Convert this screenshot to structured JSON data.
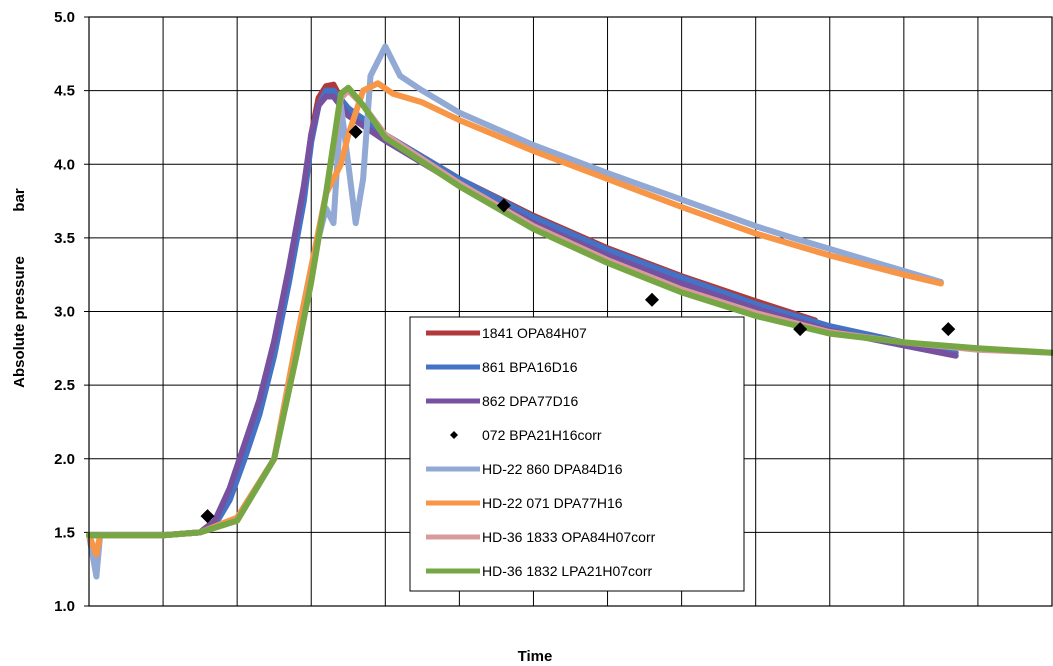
{
  "chart_data": {
    "type": "line",
    "title": "",
    "xlabel": "Time",
    "ylabel": "Absolute pressure",
    "ylabel_unit": "bar",
    "ylim": [
      1.0,
      5.0
    ],
    "yticks": [
      "1.0",
      "1.5",
      "2.0",
      "2.5",
      "3.0",
      "3.5",
      "4.0",
      "4.5",
      "5.0"
    ],
    "grid": true,
    "legend_position": "center-bottom",
    "x_tick_labels_shown": false,
    "series": [
      {
        "name": "1841 OPA84H07",
        "color": "#b0393b",
        "style": "line",
        "points": [
          [
            0,
            1.48
          ],
          [
            1,
            1.48
          ],
          [
            1.5,
            1.5
          ],
          [
            1.7,
            1.55
          ],
          [
            1.9,
            1.75
          ],
          [
            2.1,
            2.05
          ],
          [
            2.3,
            2.35
          ],
          [
            2.5,
            2.75
          ],
          [
            2.7,
            3.25
          ],
          [
            2.9,
            3.8
          ],
          [
            3.0,
            4.2
          ],
          [
            3.1,
            4.45
          ],
          [
            3.2,
            4.53
          ],
          [
            3.3,
            4.54
          ],
          [
            3.5,
            4.35
          ],
          [
            4,
            4.2
          ],
          [
            5,
            3.9
          ],
          [
            6,
            3.65
          ],
          [
            7,
            3.43
          ],
          [
            8,
            3.24
          ],
          [
            9,
            3.07
          ],
          [
            9.8,
            2.94
          ]
        ]
      },
      {
        "name": "861 BPA16D16",
        "color": "#4472c4",
        "style": "line",
        "points": [
          [
            0,
            1.48
          ],
          [
            1,
            1.48
          ],
          [
            1.5,
            1.5
          ],
          [
            1.7,
            1.55
          ],
          [
            1.9,
            1.72
          ],
          [
            2.1,
            2.0
          ],
          [
            2.3,
            2.3
          ],
          [
            2.5,
            2.7
          ],
          [
            2.7,
            3.2
          ],
          [
            2.9,
            3.75
          ],
          [
            3.0,
            4.15
          ],
          [
            3.1,
            4.4
          ],
          [
            3.2,
            4.5
          ],
          [
            3.3,
            4.5
          ],
          [
            3.5,
            4.38
          ],
          [
            4,
            4.2
          ],
          [
            5,
            3.9
          ],
          [
            6,
            3.64
          ],
          [
            7,
            3.42
          ],
          [
            8,
            3.23
          ],
          [
            9,
            3.05
          ],
          [
            10,
            2.9
          ],
          [
            11,
            2.79
          ],
          [
            11.7,
            2.72
          ]
        ]
      },
      {
        "name": "862 DPA77D16",
        "color": "#7551a0",
        "style": "line",
        "points": [
          [
            0,
            1.48
          ],
          [
            1,
            1.48
          ],
          [
            1.5,
            1.5
          ],
          [
            1.7,
            1.58
          ],
          [
            1.9,
            1.8
          ],
          [
            2.1,
            2.1
          ],
          [
            2.3,
            2.4
          ],
          [
            2.5,
            2.8
          ],
          [
            2.7,
            3.3
          ],
          [
            2.9,
            3.85
          ],
          [
            3.0,
            4.2
          ],
          [
            3.1,
            4.4
          ],
          [
            3.2,
            4.46
          ],
          [
            3.3,
            4.46
          ],
          [
            3.5,
            4.33
          ],
          [
            4,
            4.16
          ],
          [
            5,
            3.86
          ],
          [
            6,
            3.6
          ],
          [
            7,
            3.38
          ],
          [
            8,
            3.19
          ],
          [
            9,
            3.02
          ],
          [
            10,
            2.87
          ],
          [
            11,
            2.77
          ],
          [
            11.7,
            2.7
          ]
        ]
      },
      {
        "name": "072 BPA21H16corr",
        "color": "#000000",
        "style": "marker",
        "points": [
          [
            1.6,
            1.61
          ],
          [
            3.6,
            4.22
          ],
          [
            5.6,
            3.72
          ],
          [
            7.6,
            3.08
          ],
          [
            9.6,
            2.88
          ],
          [
            11.6,
            2.88
          ]
        ]
      },
      {
        "name": "HD-22 860 DPA84D16",
        "color": "#91a9d4",
        "style": "line",
        "points": [
          [
            0,
            1.48
          ],
          [
            0.1,
            1.2
          ],
          [
            0.15,
            1.48
          ],
          [
            1,
            1.48
          ],
          [
            1.5,
            1.5
          ],
          [
            2,
            1.6
          ],
          [
            2.5,
            2.0
          ],
          [
            2.8,
            2.8
          ],
          [
            3.0,
            3.3
          ],
          [
            3.2,
            3.7
          ],
          [
            3.3,
            3.6
          ],
          [
            3.4,
            4.4
          ],
          [
            3.5,
            4.0
          ],
          [
            3.6,
            3.6
          ],
          [
            3.7,
            3.9
          ],
          [
            3.8,
            4.6
          ],
          [
            4.0,
            4.8
          ],
          [
            4.2,
            4.6
          ],
          [
            4.5,
            4.5
          ],
          [
            5,
            4.35
          ],
          [
            6,
            4.13
          ],
          [
            7,
            3.94
          ],
          [
            8,
            3.76
          ],
          [
            9,
            3.58
          ],
          [
            9.5,
            3.5
          ],
          [
            11.5,
            3.2
          ]
        ]
      },
      {
        "name": "HD-22 071 DPA77H16",
        "color": "#f79646",
        "style": "line",
        "points": [
          [
            0,
            1.48
          ],
          [
            0.1,
            1.35
          ],
          [
            0.15,
            1.48
          ],
          [
            1,
            1.48
          ],
          [
            1.5,
            1.5
          ],
          [
            2,
            1.6
          ],
          [
            2.5,
            2.0
          ],
          [
            2.8,
            2.8
          ],
          [
            3.0,
            3.3
          ],
          [
            3.2,
            3.8
          ],
          [
            3.4,
            4.0
          ],
          [
            3.5,
            4.2
          ],
          [
            3.7,
            4.5
          ],
          [
            3.9,
            4.55
          ],
          [
            4.1,
            4.48
          ],
          [
            4.5,
            4.42
          ],
          [
            5,
            4.3
          ],
          [
            6,
            4.09
          ],
          [
            7,
            3.9
          ],
          [
            8,
            3.71
          ],
          [
            9,
            3.53
          ],
          [
            10,
            3.38
          ],
          [
            11,
            3.25
          ],
          [
            11.5,
            3.19
          ]
        ]
      },
      {
        "name": "HD-36 1833 OPA84H07corr",
        "color": "#d89a9a",
        "style": "line",
        "points": [
          [
            0,
            1.48
          ],
          [
            1,
            1.48
          ],
          [
            1.5,
            1.5
          ],
          [
            2,
            1.58
          ],
          [
            2.5,
            2.0
          ],
          [
            2.8,
            2.7
          ],
          [
            3.0,
            3.2
          ],
          [
            3.2,
            3.8
          ],
          [
            3.4,
            4.45
          ],
          [
            3.5,
            4.5
          ],
          [
            3.7,
            4.4
          ],
          [
            4,
            4.2
          ],
          [
            5,
            3.87
          ],
          [
            6,
            3.58
          ],
          [
            7,
            3.35
          ],
          [
            8,
            3.15
          ],
          [
            9,
            2.99
          ],
          [
            10,
            2.86
          ],
          [
            11,
            2.79
          ],
          [
            12,
            2.74
          ],
          [
            13,
            2.72
          ]
        ]
      },
      {
        "name": "HD-36 1832 LPA21H07corr",
        "color": "#77a645",
        "style": "line",
        "points": [
          [
            0,
            1.48
          ],
          [
            1,
            1.48
          ],
          [
            1.5,
            1.5
          ],
          [
            2,
            1.58
          ],
          [
            2.5,
            2.0
          ],
          [
            2.8,
            2.7
          ],
          [
            3.0,
            3.2
          ],
          [
            3.2,
            3.8
          ],
          [
            3.4,
            4.48
          ],
          [
            3.5,
            4.52
          ],
          [
            3.7,
            4.4
          ],
          [
            4,
            4.18
          ],
          [
            5,
            3.85
          ],
          [
            6,
            3.56
          ],
          [
            7,
            3.33
          ],
          [
            8,
            3.13
          ],
          [
            9,
            2.97
          ],
          [
            10,
            2.85
          ],
          [
            11,
            2.79
          ],
          [
            12,
            2.75
          ],
          [
            13,
            2.72
          ]
        ]
      }
    ]
  }
}
